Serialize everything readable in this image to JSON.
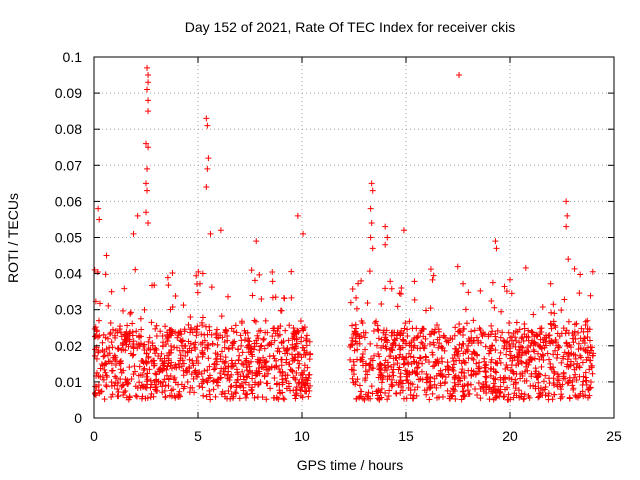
{
  "chart_data": {
    "type": "scatter",
    "title": "Day 152 of 2021, Rate Of TEC Index for receiver ckis",
    "xlabel": "GPS time / hours",
    "ylabel": "ROTI / TECUs",
    "xlim": [
      0,
      25
    ],
    "ylim": [
      0,
      0.1
    ],
    "x_ticks": [
      "0",
      "5",
      "10",
      "15",
      "20",
      "25"
    ],
    "y_ticks": [
      "0",
      "0.01",
      "0.02",
      "0.03",
      "0.04",
      "0.05",
      "0.06",
      "0.07",
      "0.08",
      "0.09",
      "0.1"
    ],
    "grid": true,
    "marker": "plus",
    "color": "#ff0000",
    "series": [
      {
        "segments": [
          {
            "x_range": [
              0,
              10.4
            ],
            "baseline_range": [
              0.005,
              0.025
            ]
          },
          {
            "x_range": [
              12.3,
              24
            ],
            "baseline_range": [
              0.005,
              0.025
            ]
          }
        ],
        "points": [
          {
            "x": 0.2,
            "y": 0.058
          },
          {
            "x": 0.25,
            "y": 0.055
          },
          {
            "x": 0.6,
            "y": 0.045
          },
          {
            "x": 1.9,
            "y": 0.051
          },
          {
            "x": 2.1,
            "y": 0.056
          },
          {
            "x": 2.55,
            "y": 0.097
          },
          {
            "x": 2.6,
            "y": 0.095
          },
          {
            "x": 2.6,
            "y": 0.093
          },
          {
            "x": 2.55,
            "y": 0.091
          },
          {
            "x": 2.6,
            "y": 0.088
          },
          {
            "x": 2.6,
            "y": 0.085
          },
          {
            "x": 2.5,
            "y": 0.076
          },
          {
            "x": 2.6,
            "y": 0.075
          },
          {
            "x": 2.55,
            "y": 0.069
          },
          {
            "x": 2.5,
            "y": 0.065
          },
          {
            "x": 2.55,
            "y": 0.063
          },
          {
            "x": 2.5,
            "y": 0.057
          },
          {
            "x": 2.6,
            "y": 0.054
          },
          {
            "x": 5.4,
            "y": 0.083
          },
          {
            "x": 5.45,
            "y": 0.081
          },
          {
            "x": 5.5,
            "y": 0.072
          },
          {
            "x": 5.45,
            "y": 0.069
          },
          {
            "x": 5.4,
            "y": 0.064
          },
          {
            "x": 5.6,
            "y": 0.051
          },
          {
            "x": 6.1,
            "y": 0.052
          },
          {
            "x": 7.8,
            "y": 0.049
          },
          {
            "x": 9.8,
            "y": 0.056
          },
          {
            "x": 10.05,
            "y": 0.051
          },
          {
            "x": 13.35,
            "y": 0.065
          },
          {
            "x": 13.4,
            "y": 0.063
          },
          {
            "x": 13.3,
            "y": 0.058
          },
          {
            "x": 13.35,
            "y": 0.054
          },
          {
            "x": 13.3,
            "y": 0.05
          },
          {
            "x": 13.4,
            "y": 0.047
          },
          {
            "x": 14.0,
            "y": 0.053
          },
          {
            "x": 14.1,
            "y": 0.05
          },
          {
            "x": 14.0,
            "y": 0.048
          },
          {
            "x": 14.9,
            "y": 0.052
          },
          {
            "x": 17.55,
            "y": 0.095
          },
          {
            "x": 19.3,
            "y": 0.049
          },
          {
            "x": 19.35,
            "y": 0.047
          },
          {
            "x": 22.7,
            "y": 0.06
          },
          {
            "x": 22.75,
            "y": 0.056
          },
          {
            "x": 22.7,
            "y": 0.053
          },
          {
            "x": 22.8,
            "y": 0.044
          }
        ]
      }
    ]
  }
}
